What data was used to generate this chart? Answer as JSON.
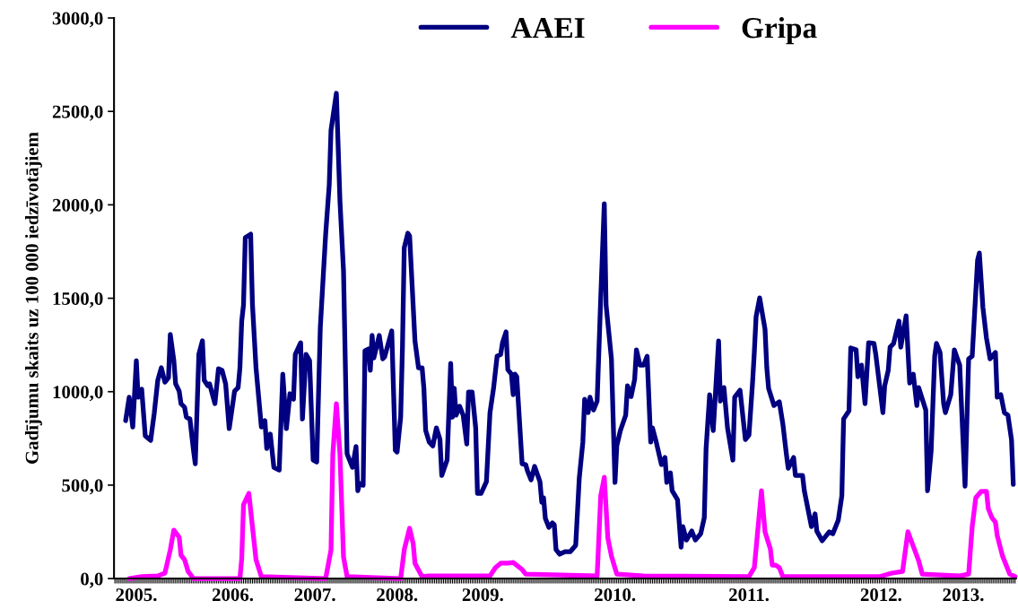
{
  "chart_data": {
    "type": "line",
    "ylabel": "Gadījumu skaits uz 100 000 iedzīvotājiem",
    "ylim": [
      0,
      3000
    ],
    "yticks": [
      {
        "value": 0,
        "label": "0,0"
      },
      {
        "value": 500,
        "label": "500,0"
      },
      {
        "value": 1000,
        "label": "1000,0"
      },
      {
        "value": 1500,
        "label": "1500,0"
      },
      {
        "value": 2000,
        "label": "2000,0"
      },
      {
        "value": 2500,
        "label": "2500,0"
      },
      {
        "value": 3000,
        "label": "3000,0"
      }
    ],
    "grid": false,
    "legend": "top",
    "marker": "none",
    "line_style": "solid",
    "categories": [
      null,
      null,
      null,
      null,
      null,
      null,
      null,
      null,
      null,
      null,
      null,
      null,
      "2005.",
      null,
      null,
      null,
      null,
      null,
      null,
      null,
      null,
      null,
      null,
      null,
      null,
      null,
      null,
      null,
      null,
      null,
      null,
      null,
      null,
      null,
      null,
      null,
      null,
      null,
      null,
      null,
      null,
      null,
      null,
      null,
      null,
      null,
      null,
      null,
      null,
      null,
      null,
      null,
      null,
      null,
      null,
      null,
      null,
      null,
      null,
      null,
      null,
      null,
      null,
      null,
      null,
      null,
      "2006.",
      null,
      null,
      null,
      null,
      null,
      null,
      null,
      null,
      null,
      null,
      null,
      null,
      null,
      null,
      null,
      null,
      null,
      null,
      null,
      null,
      null,
      null,
      null,
      null,
      null,
      null,
      null,
      null,
      null,
      null,
      null,
      null,
      null,
      null,
      null,
      null,
      null,
      null,
      null,
      null,
      null,
      null,
      null,
      null,
      null,
      "2007.",
      null,
      null,
      null,
      null,
      null,
      null,
      null,
      null,
      null,
      null,
      null,
      null,
      null,
      null,
      null,
      null,
      null,
      null,
      null,
      null,
      null,
      null,
      null,
      null,
      null,
      null,
      null,
      null,
      null,
      null,
      null,
      null,
      null,
      null,
      null,
      null,
      null,
      null,
      null,
      null,
      null,
      null,
      null,
      null,
      null,
      "2008.",
      null,
      null,
      null,
      null,
      null,
      null,
      null,
      null,
      null,
      null,
      null,
      null,
      null,
      null,
      null,
      null,
      null,
      null,
      null,
      null,
      null,
      null,
      null,
      null,
      null,
      null,
      null,
      null,
      null,
      null,
      null,
      null,
      null,
      null,
      null,
      null,
      null,
      null,
      null,
      null,
      null,
      null,
      null,
      null,
      null,
      null,
      null,
      "2009.",
      null,
      null,
      null,
      null,
      null,
      null,
      null,
      null,
      null,
      null,
      null,
      null,
      null,
      null,
      null,
      null,
      null,
      null,
      null,
      null,
      null,
      null,
      null,
      null,
      null,
      null,
      null,
      null,
      null,
      null,
      null,
      null,
      null,
      null,
      null,
      null,
      null,
      null,
      null,
      null,
      null,
      null,
      null,
      null,
      null,
      null,
      null,
      null,
      null,
      null,
      null,
      null,
      null,
      null,
      null,
      null,
      null,
      null,
      null,
      null,
      null,
      null,
      null,
      null,
      null,
      null,
      null,
      null,
      null,
      null,
      null,
      null,
      null,
      "2010.",
      null,
      null,
      null,
      null,
      null,
      null,
      null,
      null,
      null,
      null,
      null,
      null,
      null,
      null,
      null,
      null,
      null,
      null,
      null,
      null,
      null,
      null,
      null,
      null,
      null,
      null,
      null,
      null,
      null,
      null,
      null,
      null,
      null,
      null,
      null,
      null,
      null,
      null,
      null,
      null,
      null,
      null,
      null,
      null,
      null,
      null,
      null,
      null,
      null,
      null,
      null,
      null,
      null,
      null,
      null,
      null,
      null,
      null,
      null,
      null,
      null,
      null,
      null,
      null,
      null,
      null,
      null,
      null,
      null,
      null,
      null,
      null,
      null,
      null,
      "2011.",
      null,
      null,
      null,
      null,
      null,
      null,
      null,
      null,
      null,
      null,
      null,
      null,
      null,
      null,
      null,
      null,
      null,
      null,
      null,
      null,
      null,
      null,
      null,
      null,
      null,
      null,
      null,
      null,
      null,
      null,
      null,
      null,
      null,
      null,
      null,
      null,
      null,
      null,
      null,
      null,
      null,
      null,
      null,
      null,
      null,
      null,
      null,
      null,
      null,
      null,
      null,
      null,
      null,
      null,
      null,
      null,
      null,
      null,
      null,
      null,
      null,
      null,
      null,
      null,
      null,
      null,
      null,
      null,
      null,
      null,
      null,
      null,
      null,
      "2012.",
      null,
      null,
      null,
      null,
      null,
      null,
      null,
      null,
      null,
      null,
      null,
      null,
      null,
      null,
      null,
      null,
      null,
      null,
      null,
      null,
      null,
      null,
      null,
      null,
      null,
      null,
      null,
      null,
      null,
      null,
      null,
      null,
      null,
      null,
      null,
      null,
      null,
      null,
      null,
      null,
      null,
      null,
      null,
      null,
      null,
      "2013.",
      null,
      null,
      null,
      null,
      null,
      null,
      null,
      null,
      null,
      null,
      null,
      null,
      null,
      null,
      null,
      null,
      null,
      null,
      null,
      null,
      null,
      null,
      null,
      null,
      null,
      null,
      null,
      null,
      null
    ],
    "series": [
      {
        "name": "AAEI",
        "color": "#000080",
        "values": [
          null,
          null,
          null,
          null,
          null,
          null,
          845,
          null,
          970,
          null,
          811,
          null,
          1166,
          970,
          null,
          1013,
          null,
          763,
          null,
          null,
          739,
          null,
          883,
          null,
          1061,
          null,
          1128,
          null,
          1051,
          null,
          1075,
          1306,
          null,
          1166,
          1042,
          null,
          1003,
          936,
          null,
          917,
          864,
          null,
          854,
          null,
          686,
          614,
          null,
          1200,
          null,
          1272,
          1061,
          null,
          1032,
          1042,
          null,
          null,
          936,
          null,
          1123,
          null,
          1114,
          null,
          1042,
          null,
          802,
          null,
          null,
          1003,
          null,
          1022,
          1128,
          1378,
          1464,
          1824,
          null,
          null,
          1843,
          1469,
          null,
          1128,
          null,
          null,
          811,
          null,
          845,
          696,
          null,
          773,
          null,
          595,
          null,
          null,
          581,
          null,
          1094,
          null,
          802,
          null,
          989,
          null,
          960,
          1200,
          null,
          null,
          1262,
          854,
          null,
          1200,
          null,
          1166,
          null,
          634,
          null,
          624,
          null,
          1344,
          null,
          null,
          1843,
          null,
          2107,
          2400,
          null,
          null,
          2597,
          null,
          2021,
          null,
          1646,
          null,
          667,
          null,
          null,
          595,
          null,
          706,
          470,
          509,
          null,
          499,
          1219,
          null,
          1229,
          1114,
          1301,
          1181,
          null,
          null,
          1301,
          null,
          1176,
          1186,
          null,
          null,
          null,
          1325,
          null,
          686,
          677,
          null,
          864,
          1238,
          1771,
          null,
          1848,
          1834,
          null,
          null,
          1272,
          null,
          1128,
          null,
          1128,
          1018,
          792,
          null,
          730,
          null,
          710,
          null,
          806,
          null,
          744,
          552,
          null,
          null,
          634,
          null,
          1152,
          864,
          1018,
          874,
          null,
          922,
          null,
          874,
          null,
          720,
          998,
          null,
          998,
          null,
          806,
          456,
          null,
          456,
          null,
          null,
          518,
          null,
          888,
          null,
          1018,
          null,
          1190,
          null,
          1200,
          1262,
          null,
          1320,
          1118,
          null,
          1094,
          984,
          1094,
          1080,
          null,
          null,
          614,
          null,
          610,
          576,
          null,
          528,
          null,
          600,
          null,
          null,
          518,
          408,
          432,
          322,
          null,
          274,
          null,
          298,
          288,
          154,
          null,
          130,
          null,
          null,
          144,
          null,
          null,
          144,
          null,
          null,
          178,
          null,
          538,
          null,
          730,
          960,
          null,
          888,
          970,
          null,
          902,
          null,
          950,
          null,
          1498,
          null,
          2006,
          1464,
          null,
          null,
          1176,
          null,
          514,
          710,
          null,
          792,
          null,
          null,
          874,
          1032,
          null,
          974,
          null,
          1066,
          1224,
          null,
          1142,
          null,
          1142,
          null,
          1190,
          null,
          730,
          806,
          null,
          734,
          null,
          null,
          610,
          null,
          648,
          514,
          null,
          566,
          470,
          null,
          null,
          422,
          null,
          168,
          278,
          null,
          206,
          null,
          null,
          254,
          null,
          206,
          null,
          null,
          240,
          null,
          326,
          696,
          null,
          984,
          null,
          792,
          null,
          null,
          1272,
          950,
          null,
          1022,
          null,
          806,
          null,
          null,
          634,
          970,
          null,
          null,
          1008,
          null,
          null,
          744,
          null,
          768,
          null,
          1046,
          1210,
          1402,
          null,
          1502,
          null,
          null,
          1334,
          1128,
          1018,
          null,
          null,
          926,
          null,
          null,
          946,
          null,
          826,
          null,
          662,
          590,
          null,
          null,
          648,
          552,
          null,
          null,
          null,
          552,
          470,
          null,
          null,
          null,
          278,
          null,
          346,
          254,
          null,
          null,
          202,
          null,
          null,
          null,
          250,
          null,
          240,
          null,
          null,
          312,
          null,
          442,
          854,
          null,
          null,
          898,
          1234,
          null,
          null,
          1224,
          1080,
          null,
          1142,
          null,
          936,
          null,
          1262,
          null,
          null,
          1258,
          1200,
          null,
          null,
          null,
          888,
          1032,
          null,
          1114,
          1238,
          null,
          1258,
          null,
          null,
          1378,
          1238,
          null,
          null,
          1406,
          null,
          1046,
          null,
          1094,
          null,
          926,
          1022,
          null,
          null,
          null,
          902,
          470,
          null,
          682,
          null,
          1190,
          1258,
          null,
          1210,
          null,
          936,
          888,
          null,
          null,
          984,
          null,
          1224,
          null,
          null,
          1142,
          null,
          null,
          494,
          null,
          1176,
          null,
          1190,
          null,
          null,
          1704,
          1742,
          null,
          1450,
          null,
          1286,
          null,
          1176,
          null,
          null,
          1210,
          970,
          null,
          984,
          null,
          888,
          null,
          874,
          null,
          744,
          504,
          null
        ]
      },
      {
        "name": "Gripa",
        "color": "#ff00ff",
        "values": [
          null,
          null,
          null,
          null,
          null,
          null,
          null,
          null,
          0,
          null,
          null,
          null,
          null,
          null,
          null,
          10,
          null,
          null,
          null,
          null,
          null,
          null,
          null,
          null,
          14,
          null,
          null,
          null,
          29,
          null,
          null,
          154,
          null,
          259,
          null,
          null,
          221,
          125,
          null,
          101,
          null,
          38,
          null,
          null,
          0,
          null,
          null,
          null,
          null,
          null,
          null,
          null,
          null,
          null,
          null,
          null,
          null,
          null,
          null,
          null,
          null,
          null,
          null,
          null,
          null,
          null,
          null,
          null,
          null,
          null,
          0,
          106,
          394,
          null,
          null,
          456,
          null,
          278,
          null,
          101,
          null,
          null,
          10,
          null,
          null,
          null,
          null,
          null,
          null,
          null,
          null,
          null,
          null,
          null,
          null,
          null,
          null,
          null,
          null,
          null,
          null,
          null,
          null,
          null,
          null,
          null,
          null,
          null,
          null,
          null,
          null,
          null,
          null,
          null,
          null,
          null,
          null,
          null,
          0,
          null,
          null,
          154,
          667,
          null,
          936,
          null,
          667,
          null,
          115,
          null,
          10,
          null,
          null,
          null,
          null,
          null,
          null,
          null,
          null,
          null,
          null,
          null,
          null,
          null,
          null,
          null,
          null,
          null,
          null,
          null,
          null,
          null,
          null,
          null,
          null,
          null,
          null,
          null,
          null,
          null,
          0,
          null,
          154,
          null,
          null,
          269,
          null,
          187,
          82,
          null,
          null,
          null,
          10,
          null,
          null,
          null,
          14,
          null,
          null,
          null,
          null,
          null,
          null,
          null,
          null,
          null,
          null,
          null,
          null,
          null,
          null,
          null,
          null,
          null,
          null,
          null,
          null,
          null,
          null,
          null,
          null,
          null,
          null,
          null,
          null,
          null,
          null,
          null,
          null,
          null,
          14,
          null,
          null,
          58,
          null,
          null,
          82,
          null,
          null,
          null,
          82,
          null,
          null,
          86,
          null,
          null,
          null,
          null,
          48,
          null,
          24,
          null,
          null,
          null,
          null,
          null,
          null,
          null,
          null,
          null,
          null,
          null,
          null,
          null,
          null,
          null,
          null,
          null,
          null,
          null,
          null,
          null,
          null,
          null,
          null,
          null,
          null,
          null,
          null,
          null,
          null,
          null,
          null,
          null,
          null,
          null,
          null,
          null,
          null,
          null,
          14,
          null,
          442,
          null,
          542,
          null,
          216,
          null,
          120,
          null,
          null,
          24,
          null,
          null,
          null,
          null,
          null,
          null,
          null,
          null,
          null,
          null,
          null,
          null,
          null,
          null,
          14,
          null,
          null,
          null,
          null,
          null,
          null,
          null,
          null,
          null,
          null,
          null,
          null,
          null,
          null,
          null,
          null,
          null,
          null,
          null,
          null,
          null,
          null,
          null,
          null,
          null,
          null,
          null,
          null,
          null,
          null,
          null,
          null,
          null,
          null,
          null,
          null,
          null,
          null,
          null,
          null,
          null,
          null,
          null,
          null,
          null,
          null,
          null,
          null,
          null,
          null,
          null,
          null,
          null,
          null,
          null,
          null,
          null,
          null,
          10,
          null,
          null,
          58,
          null,
          null,
          null,
          470,
          null,
          250,
          null,
          null,
          158,
          72,
          null,
          72,
          null,
          58,
          null,
          10,
          null,
          null,
          null,
          null,
          null,
          null,
          null,
          null,
          null,
          null,
          null,
          null,
          null,
          null,
          null,
          null,
          null,
          null,
          null,
          null,
          null,
          null,
          null,
          null,
          null,
          null,
          null,
          null,
          null,
          null,
          null,
          null,
          null,
          null,
          null,
          null,
          null,
          null,
          null,
          null,
          null,
          null,
          null,
          null,
          null,
          null,
          null,
          null,
          null,
          null,
          null,
          null,
          null,
          10,
          null,
          null,
          null,
          null,
          null,
          null,
          29,
          null,
          null,
          null,
          null,
          null,
          38,
          null,
          null,
          250,
          null,
          null,
          null,
          null,
          null,
          96,
          null,
          24,
          null,
          null,
          null,
          null,
          null,
          null,
          null,
          null,
          null,
          null,
          null,
          null,
          null,
          null,
          null,
          null,
          null,
          null,
          null,
          null,
          14,
          null,
          null,
          null,
          null,
          24,
          null,
          278,
          null,
          432,
          null,
          null,
          466,
          null,
          null,
          466,
          374,
          null,
          326,
          null,
          302,
          230,
          null,
          null,
          120,
          null,
          null,
          null,
          24,
          null,
          null,
          10
        ]
      }
    ]
  }
}
